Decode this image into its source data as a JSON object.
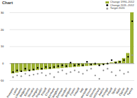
{
  "chart_data": {
    "type": "bar",
    "title": "Chart",
    "categories": [
      "Romania",
      "Latvia",
      "Lithuania",
      "Bulgaria",
      "Estonia",
      "Slovakia",
      "Hungary",
      "Czech Republic",
      "Poland",
      "Croatia",
      "Germany",
      "United Kingdom",
      "Denmark",
      "Sweden",
      "Belgium",
      "France",
      "Finland",
      "Italy",
      "Netherlands",
      "Greece",
      "Slovenia",
      "Luxembourg",
      "Austria",
      "Portugal",
      "Ireland",
      "Spain",
      "Malta",
      "Cyprus",
      "Iceland",
      "Turkey"
    ],
    "series": [
      {
        "name": "Change 1990–2012",
        "type": "bar",
        "color": "#9bb02f",
        "values": [
          -6,
          -5.5,
          -5,
          -4.8,
          -4.5,
          -4.3,
          -4,
          -3.8,
          -3.6,
          -3.4,
          -3.2,
          -3,
          -2.8,
          -2.6,
          -2.4,
          -2.2,
          -2,
          -1.8,
          -1.6,
          -1.4,
          -1.2,
          -1,
          -0.8,
          -0.5,
          0.5,
          1,
          1.5,
          3,
          6,
          30
        ]
      },
      {
        "name": "Change 2011–2012",
        "type": "scatter",
        "color": "#000000",
        "marker": "circle",
        "values": [
          -5,
          -4,
          -4.5,
          -3,
          -4,
          -3.5,
          -2.5,
          -3,
          -2,
          -2.5,
          -2,
          -1.5,
          -1,
          -1.5,
          0.5,
          -1,
          -0.5,
          -1,
          1,
          -0.5,
          0,
          -1,
          -0.5,
          0,
          2,
          0.5,
          1,
          2,
          4,
          25
        ]
      },
      {
        "name": "Target 2020",
        "type": "scatter",
        "color": "#999999",
        "marker": "circle",
        "values": [
          -8,
          -7,
          -7.5,
          -6,
          -7,
          -6.5,
          -6,
          -5.5,
          -7,
          -6,
          -8,
          -5,
          -4,
          -6,
          -5,
          -4,
          -5,
          -6,
          -4,
          -3,
          -7,
          -9,
          -4,
          -3,
          -5,
          -7,
          -4,
          -6,
          -5,
          5
        ]
      }
    ],
    "ylim": [
      -10,
      30
    ],
    "yticks": [
      -10,
      0,
      10,
      20,
      30
    ],
    "grid": true,
    "legend": "top-right"
  }
}
